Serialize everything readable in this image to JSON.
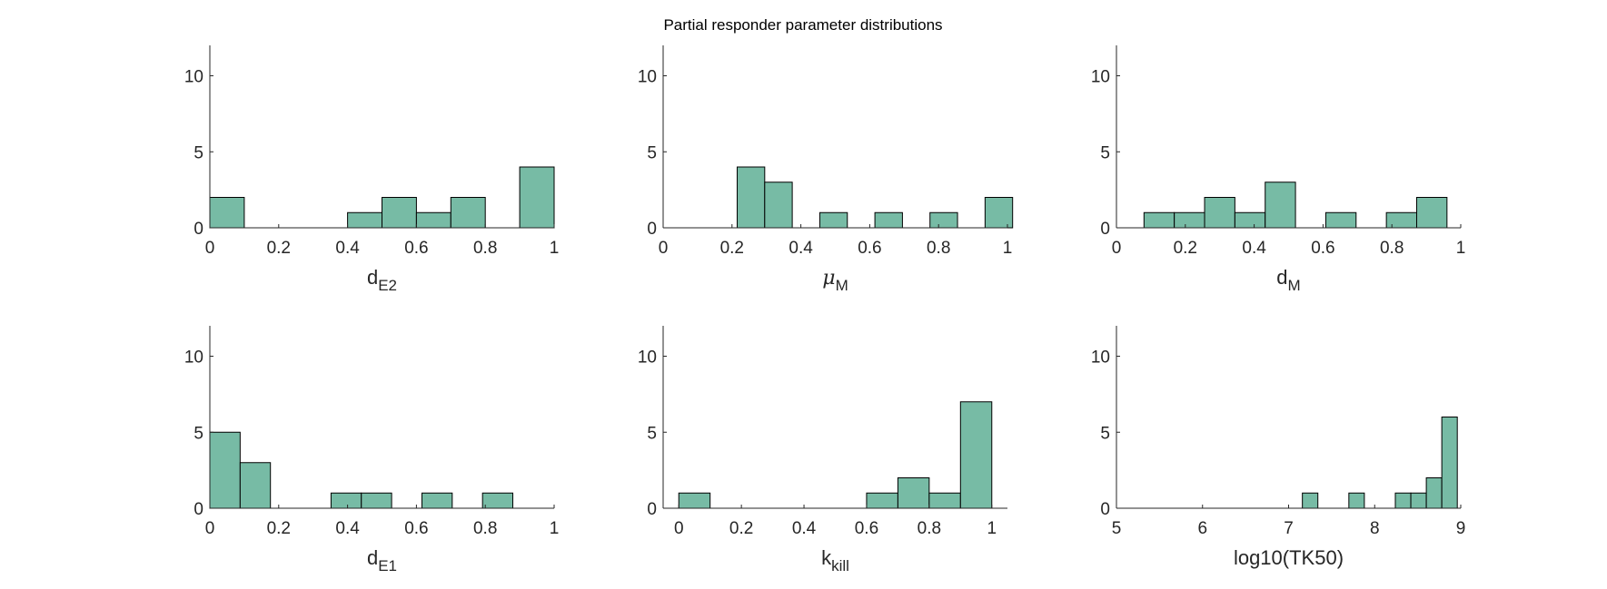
{
  "figure_title": "Partial responder parameter distributions",
  "style": {
    "bar_fill": "#77bba5",
    "bar_edge": "#000000",
    "axis_color": "#262626"
  },
  "chart_data": [
    {
      "type": "bar",
      "xlabel": {
        "main": "d",
        "sub": "E2"
      },
      "xlim": [
        0,
        1
      ],
      "ylim": [
        0,
        12
      ],
      "xticks": [
        0,
        0.2,
        0.4,
        0.6,
        0.8,
        1
      ],
      "xtick_labels": [
        "0",
        "0.2",
        "0.4",
        "0.6",
        "0.8",
        "1"
      ],
      "yticks": [
        0,
        5,
        10
      ],
      "bin_edges": [
        0,
        0.1,
        0.2,
        0.3,
        0.4,
        0.5,
        0.6,
        0.7,
        0.8,
        0.9,
        1.0
      ],
      "counts": [
        2,
        0,
        0,
        0,
        1,
        2,
        1,
        2,
        0,
        4
      ]
    },
    {
      "type": "bar",
      "xlabel": {
        "main": "μ",
        "sub": "M",
        "greek": true
      },
      "xlim": [
        0,
        1
      ],
      "ylim": [
        0,
        12
      ],
      "xticks": [
        0,
        0.2,
        0.4,
        0.6,
        0.8,
        1
      ],
      "xtick_labels": [
        "0",
        "0.2",
        "0.4",
        "0.6",
        "0.8",
        "1"
      ],
      "yticks": [
        0,
        5,
        10
      ],
      "bin_edges": [
        0.215,
        0.295,
        0.375,
        0.455,
        0.535,
        0.615,
        0.695,
        0.775,
        0.855,
        0.935,
        1.015
      ],
      "counts": [
        4,
        3,
        0,
        1,
        0,
        1,
        0,
        1,
        0,
        2
      ]
    },
    {
      "type": "bar",
      "xlabel": {
        "main": "d",
        "sub": "M"
      },
      "xlim": [
        0,
        1
      ],
      "ylim": [
        0,
        12
      ],
      "xticks": [
        0,
        0.2,
        0.4,
        0.6,
        0.8,
        1
      ],
      "xtick_labels": [
        "0",
        "0.2",
        "0.4",
        "0.6",
        "0.8",
        "1"
      ],
      "yticks": [
        0,
        5,
        10
      ],
      "bin_edges": [
        0.08,
        0.168,
        0.256,
        0.344,
        0.432,
        0.52,
        0.608,
        0.696,
        0.784,
        0.872,
        0.96
      ],
      "counts": [
        1,
        1,
        2,
        1,
        3,
        0,
        1,
        0,
        1,
        2
      ]
    },
    {
      "type": "bar",
      "xlabel": {
        "main": "d",
        "sub": "E1"
      },
      "xlim": [
        0,
        1
      ],
      "ylim": [
        0,
        12
      ],
      "xticks": [
        0,
        0.2,
        0.4,
        0.6,
        0.8,
        1
      ],
      "xtick_labels": [
        "0",
        "0.2",
        "0.4",
        "0.6",
        "0.8",
        "1"
      ],
      "yticks": [
        0,
        5,
        10
      ],
      "bin_edges": [
        0,
        0.088,
        0.176,
        0.264,
        0.352,
        0.44,
        0.528,
        0.616,
        0.704,
        0.792,
        0.88
      ],
      "counts": [
        5,
        3,
        0,
        0,
        1,
        1,
        0,
        1,
        0,
        1
      ]
    },
    {
      "type": "bar",
      "xlabel": {
        "main": "k",
        "sub": "kill"
      },
      "xlim": [
        -0.05,
        1.05
      ],
      "ylim": [
        0,
        12
      ],
      "xticks": [
        0,
        0.2,
        0.4,
        0.6,
        0.8,
        1
      ],
      "xtick_labels": [
        "0",
        "0.2",
        "0.4",
        "0.6",
        "0.8",
        "1"
      ],
      "yticks": [
        0,
        5,
        10
      ],
      "bin_edges": [
        0,
        0.1,
        0.2,
        0.3,
        0.4,
        0.5,
        0.6,
        0.7,
        0.8,
        0.9,
        1.0
      ],
      "counts": [
        1,
        0,
        0,
        0,
        0,
        0,
        1,
        2,
        1,
        7
      ]
    },
    {
      "type": "bar",
      "xlabel": {
        "main": "log10(TK50)",
        "sub": ""
      },
      "xlim": [
        5,
        9
      ],
      "ylim": [
        0,
        12
      ],
      "xticks": [
        5,
        6,
        7,
        8,
        9
      ],
      "xtick_labels": [
        "5",
        "6",
        "7",
        "8",
        "9"
      ],
      "yticks": [
        0,
        5,
        10
      ],
      "bin_edges": [
        7.16,
        7.34,
        7.52,
        7.7,
        7.88,
        8.06,
        8.24,
        8.42,
        8.6,
        8.78,
        8.96
      ],
      "counts": [
        1,
        0,
        0,
        1,
        0,
        0,
        1,
        1,
        2,
        6
      ]
    }
  ]
}
